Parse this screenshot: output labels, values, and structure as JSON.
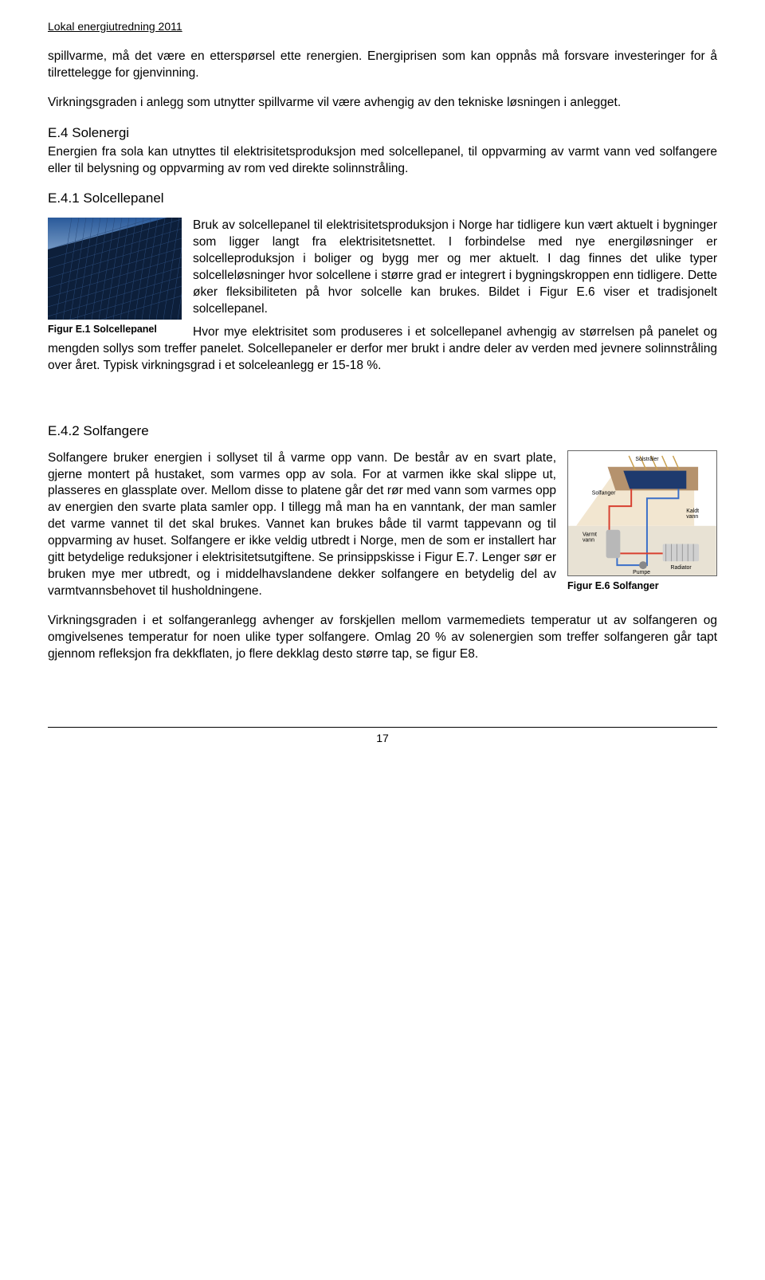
{
  "header": "Lokal energiutredning 2011",
  "p1": "spillvarme, må det være en etterspørsel ette renergien. Energiprisen som kan oppnås må forsvare investeringer for å tilrettelegge for gjenvinning.",
  "p2": "Virkningsgraden i anlegg som utnytter spillvarme vil være avhengig av den tekniske løsningen i anlegget.",
  "h_e4": "E.4 Solenergi",
  "p3": "Energien fra sola kan utnyttes til elektrisitetsproduksjon med solcellepanel, til oppvarming av varmt vann ved solfangere eller til belysning og oppvarming av rom ved direkte solinnstråling.",
  "h_e41": "E.4.1 Solcellepanel",
  "fig1_caption": "Figur E.1 Solcellepanel",
  "p4": "Bruk av solcellepanel til elektrisitetsproduksjon i Norge har tidligere kun vært aktuelt i bygninger som ligger langt fra elektrisitetsnettet. I forbindelse med nye energiløsninger er solcelleproduksjon i boliger og bygg mer og mer aktuelt. I dag finnes det ulike typer solcelleløsninger hvor solcellene i større grad er integrert i bygningskroppen enn tidligere. Dette øker fleksibiliteten på hvor solcelle kan brukes. Bildet i Figur E.6 viser et tradisjonelt solcellepanel.",
  "p5": "Hvor mye elektrisitet som produseres i et solcellepanel avhengig av størrelsen på panelet og mengden sollys som treffer panelet. Solcellepaneler er derfor mer brukt i andre deler av verden med jevnere solinnstråling over året. Typisk virkningsgrad i et solceleanlegg er 15-18 %.",
  "h_e42": "E.4.2 Solfangere",
  "p6": "Solfangere bruker energien i sollyset til å varme opp vann. De består av en svart plate, gjerne montert på hustaket, som varmes opp av sola. For at varmen ikke skal slippe ut, plasseres en glassplate over. Mellom disse to platene går det rør med vann som varmes opp av energien den svarte plata samler opp. I tillegg må man ha en vanntank, der man samler det varme vannet til det skal brukes. Vannet kan brukes både til varmt tappevann og til oppvarming av huset. Solfangere er ikke veldig utbredt i Norge, men de som er installert har gitt betydelige reduksjoner i elektrisitetsutgiftene. Se prinsippskisse i Figur E.7. Lenger sør er bruken mye mer utbredt, og i middelhavslandene dekker solfangere en betydelig del av varmtvannsbehovet til husholdningene.",
  "fig6_caption": "Figur E.6 Solfanger",
  "p7": "Virkningsgraden i et solfangeranlegg avhenger av forskjellen mellom varmemediets temperatur ut av solfangeren og omgivelsenes temperatur for noen ulike typer solfangere. Omlag 20 % av solenergien som treffer solfangeren går tapt gjennom refleksjon fra dekkflaten, jo flere dekklag desto større tap, se figur E8.",
  "page_number": "17",
  "fig1": {
    "sky_gradient_top": "#2a5a9a",
    "sky_gradient_bottom": "#bcd4ec",
    "panel_color": "#0d1f3a",
    "panel_line_color": "#2a4a7a",
    "wall_color": "#303a4b"
  },
  "fig6": {
    "roof_color": "#b5926d",
    "panel_color": "#1e3a6e",
    "wall_color": "#f2e6d0",
    "ground_color": "#e8e2d4",
    "hot_pipe": "#d84030",
    "cold_pipe": "#3a6fc8",
    "tank_color": "#b8b8b8",
    "radiator_color": "#d0d0d0",
    "label_solstraler": "Solstråler",
    "label_solfanger": "Solfanger",
    "label_varmt": "Varmt\nvann",
    "label_kaldt": "Kaldt\nvann",
    "label_pumpe": "Pumpe",
    "label_radiator": "Radiator",
    "sun_ray_color": "#c9a050"
  }
}
